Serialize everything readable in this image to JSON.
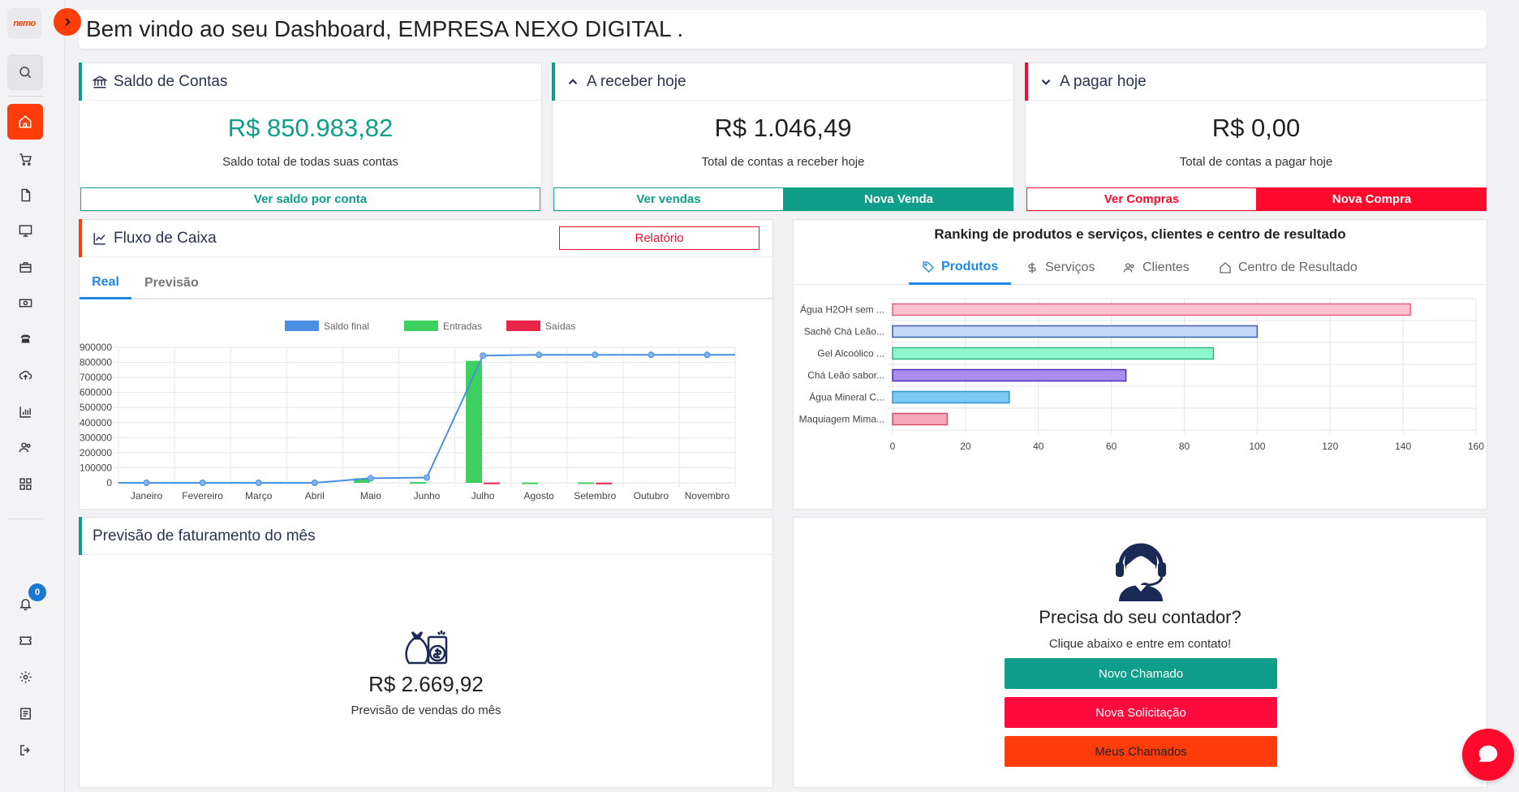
{
  "brand": {
    "logo_text": "nemo",
    "accent": "#ff3d0b"
  },
  "header": {
    "title": "Bem vindo ao seu Dashboard, EMPRESA NEXO DIGITAL ."
  },
  "notifications": {
    "count": "0"
  },
  "saldo": {
    "title": "Saldo de Contas",
    "value": "R$ 850.983,82",
    "subtitle": "Saldo total de todas suas contas",
    "button": "Ver saldo por conta",
    "color": "#0e9e8a"
  },
  "receber": {
    "title": "A receber hoje",
    "value": "R$ 1.046,49",
    "subtitle": "Total de contas a receber hoje",
    "button_view": "Ver vendas",
    "button_new": "Nova Venda"
  },
  "pagar": {
    "title": "A pagar hoje",
    "value": "R$ 0,00",
    "subtitle": "Total de contas a pagar hoje",
    "button_view": "Ver Compras",
    "button_new": "Nova Compra"
  },
  "fluxo": {
    "title": "Fluxo de Caixa",
    "report_button": "Relatório",
    "tabs": [
      "Real",
      "Previsão"
    ]
  },
  "ranking": {
    "title": "Ranking de produtos e serviços, clientes e centro de resultado",
    "tabs": [
      "Produtos",
      "Serviços",
      "Clientes",
      "Centro de Resultado"
    ]
  },
  "previsao": {
    "title": "Previsão de faturamento do mês",
    "value": "R$ 2.669,92",
    "subtitle": "Previsão de vendas do mês"
  },
  "contador": {
    "title": "Precisa do seu contador?",
    "subtitle": "Clique abaixo e entre em contato!",
    "btn1": "Novo Chamado",
    "btn2": "Nova Solicitação",
    "btn3": "Meus Chamados"
  },
  "chart_data": [
    {
      "type": "bar",
      "legend": [
        "Saldo final",
        "Entradas",
        "Saídas"
      ],
      "categories": [
        "Janeiro",
        "Fevereiro",
        "Março",
        "Abril",
        "Maio",
        "Junho",
        "Julho",
        "Agosto",
        "Setembro",
        "Outubro",
        "Novembro"
      ],
      "series": [
        {
          "name": "Saldo final",
          "kind": "line",
          "values": [
            0,
            0,
            0,
            0,
            30000,
            35000,
            845000,
            850000,
            850000,
            850000,
            850000
          ],
          "color": "#4a90e2"
        },
        {
          "name": "Entradas",
          "values": [
            0,
            0,
            0,
            0,
            30000,
            5000,
            810000,
            2000,
            3000,
            0,
            0
          ],
          "color": "#3dcf5f"
        },
        {
          "name": "Saídas",
          "values": [
            0,
            0,
            0,
            0,
            0,
            0,
            2000,
            0,
            1000,
            0,
            0
          ],
          "color": "#e8264a"
        }
      ],
      "yticks": [
        "900000",
        "800000",
        "700000",
        "600000",
        "500000",
        "400000",
        "300000",
        "200000",
        "100000",
        "0"
      ],
      "ylim": [
        0,
        900000
      ],
      "grid": true,
      "legend_position": "top"
    },
    {
      "type": "bar",
      "orientation": "horizontal",
      "categories": [
        "Água H2OH sem ...",
        "Sachê Chá Leão...",
        "Gel Alcoólico ...",
        "Chá Leão sabor...",
        "Água Mineral C...",
        "Maquiagem Mima..."
      ],
      "values": [
        142,
        100,
        88,
        64,
        32,
        15
      ],
      "colors": [
        [
          "#ffc3cf",
          "#e8637f"
        ],
        [
          "#c6d8f8",
          "#3d5ea8"
        ],
        [
          "#8ef5cc",
          "#32b88a"
        ],
        [
          "#a98ef0",
          "#4d2dbd"
        ],
        [
          "#7cc8f5",
          "#2e95d1"
        ],
        [
          "#f7a8b8",
          "#d94a6a"
        ]
      ],
      "xticks": [
        "0",
        "20",
        "40",
        "60",
        "80",
        "100",
        "120",
        "140",
        "160"
      ],
      "xlim": [
        0,
        160
      ],
      "grid": true
    }
  ]
}
